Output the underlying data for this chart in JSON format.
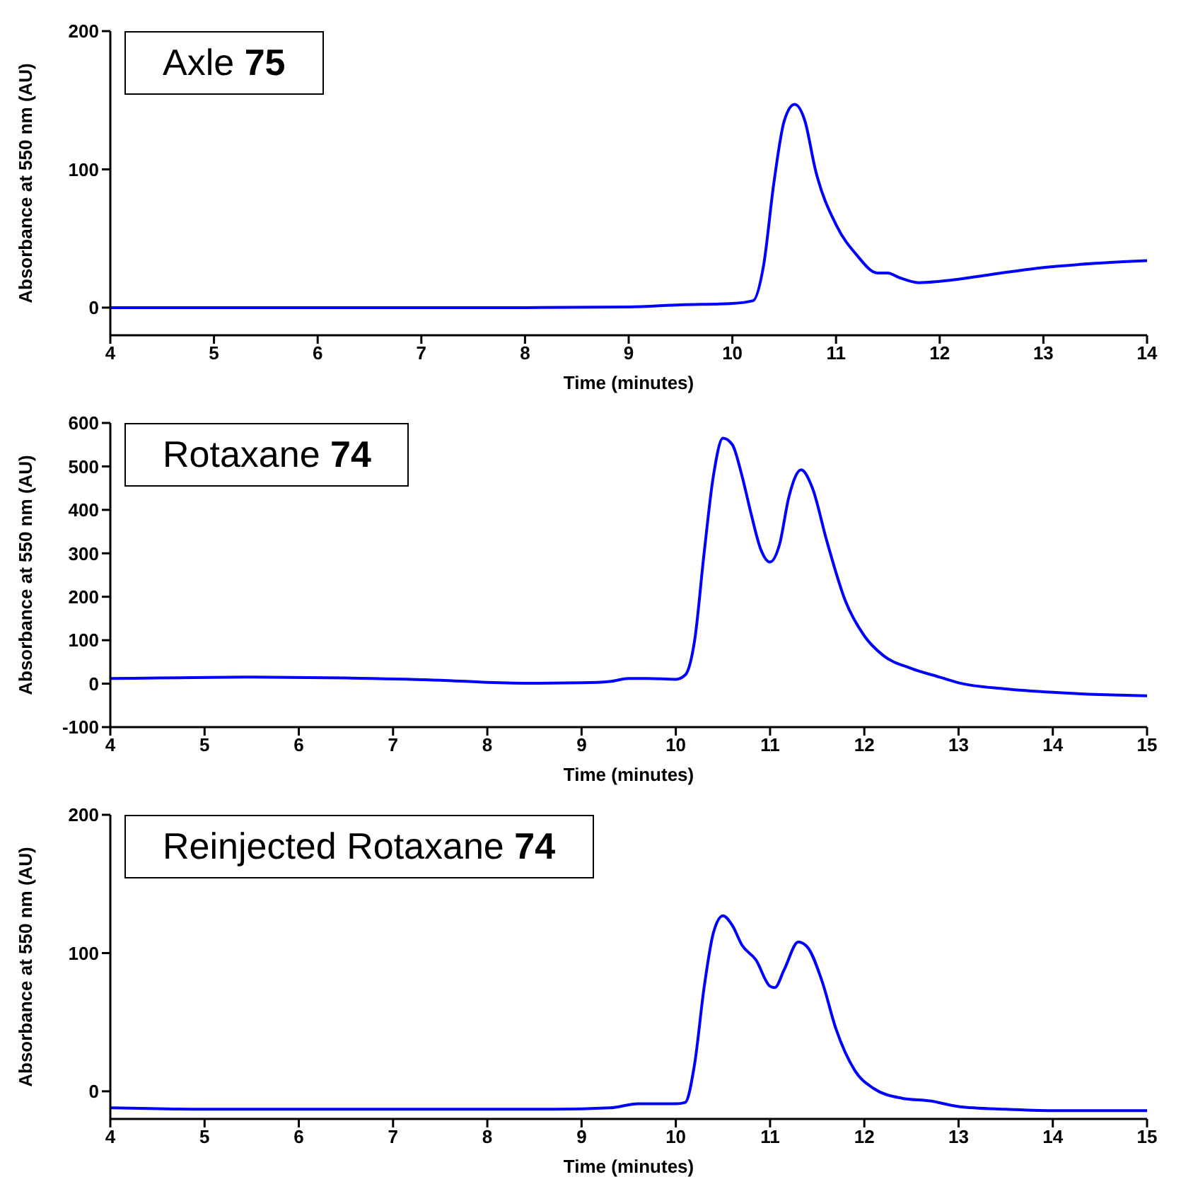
{
  "chart_data": [
    {
      "type": "line",
      "title": "Axle 75",
      "xlabel": "Time (minutes)",
      "ylabel": "Absorbance at 550 nm (AU)",
      "color": "#0000ff",
      "xlim": [
        4,
        14
      ],
      "xticks": [
        4,
        5,
        6,
        7,
        8,
        9,
        10,
        11,
        12,
        13,
        14
      ],
      "ylim": [
        -20,
        200
      ],
      "yticks": [
        0,
        100,
        200
      ],
      "x": [
        4,
        6,
        8,
        9,
        9.5,
        10,
        10.2,
        10.3,
        10.4,
        10.5,
        10.6,
        10.7,
        10.8,
        11,
        11.2,
        11.4,
        11.5,
        11.6,
        11.8,
        12,
        12.5,
        13,
        13.5,
        14
      ],
      "values": [
        0,
        0,
        0,
        0.5,
        2,
        3,
        5,
        30,
        90,
        135,
        147,
        135,
        100,
        60,
        38,
        25,
        25,
        22,
        18,
        19,
        24,
        29,
        32,
        34
      ]
    },
    {
      "type": "line",
      "title": "Rotaxane 74",
      "xlabel": "Time (minutes)",
      "ylabel": "Absorbance at 550 nm (AU)",
      "color": "#0000ff",
      "xlim": [
        4,
        15
      ],
      "xticks": [
        4,
        5,
        6,
        7,
        8,
        9,
        10,
        11,
        12,
        13,
        14,
        15
      ],
      "ylim": [
        -100,
        600
      ],
      "yticks": [
        -100,
        0,
        100,
        200,
        300,
        400,
        500,
        600
      ],
      "x": [
        4,
        4.5,
        5.5,
        6.5,
        7.5,
        8,
        8.5,
        9,
        9.3,
        9.5,
        9.7,
        10,
        10.1,
        10.2,
        10.3,
        10.4,
        10.5,
        10.6,
        10.7,
        10.8,
        10.9,
        11,
        11.1,
        11.2,
        11.33,
        11.45,
        11.6,
        11.8,
        12,
        12.2,
        12.5,
        12.8,
        13,
        13.5,
        14,
        14.5,
        15
      ],
      "values": [
        12,
        13,
        15,
        13,
        8,
        3,
        1,
        2,
        5,
        12,
        12,
        10,
        20,
        100,
        300,
        480,
        565,
        550,
        480,
        390,
        310,
        280,
        320,
        430,
        492,
        450,
        330,
        190,
        110,
        65,
        35,
        15,
        2,
        -12,
        -20,
        -25,
        -28
      ]
    },
    {
      "type": "line",
      "title": "Reinjected Rotaxane 74",
      "xlabel": "Time (minutes)",
      "ylabel": "Absorbance at 550 nm (AU)",
      "color": "#0000ff",
      "xlim": [
        4,
        15
      ],
      "xticks": [
        4,
        5,
        6,
        7,
        8,
        9,
        10,
        11,
        12,
        13,
        14,
        15
      ],
      "ylim": [
        -20,
        200
      ],
      "yticks": [
        0,
        100,
        200
      ],
      "x": [
        4,
        5,
        7,
        8.7,
        9.3,
        9.6,
        10,
        10.1,
        10.2,
        10.3,
        10.4,
        10.5,
        10.6,
        10.7,
        10.85,
        11,
        11.05,
        11.15,
        11.3,
        11.4,
        11.55,
        11.7,
        11.9,
        12.1,
        12.4,
        12.7,
        13,
        13.5,
        14,
        15
      ],
      "values": [
        -12,
        -13,
        -13,
        -13,
        -12,
        -9,
        -9,
        -8,
        20,
        75,
        115,
        127,
        120,
        106,
        95,
        76,
        75,
        88,
        108,
        104,
        80,
        45,
        15,
        2,
        -5,
        -7,
        -11,
        -13,
        -14,
        -14
      ]
    }
  ]
}
